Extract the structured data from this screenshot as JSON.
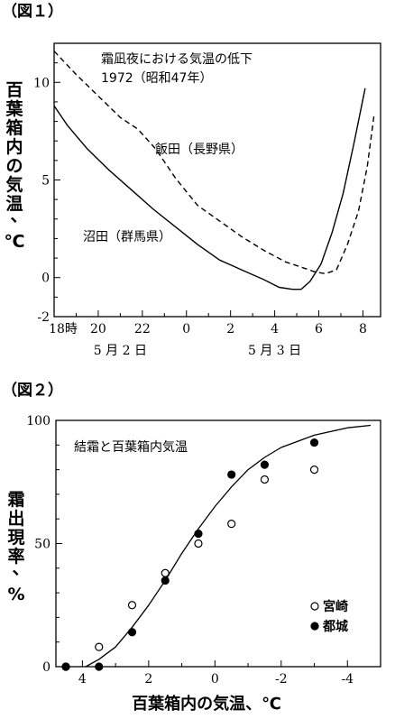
{
  "chart_data": [
    {
      "figure_label": "（図１）",
      "type": "line",
      "title": "霜凪夜における気温の低下",
      "subtitle": "1972（昭和47年）",
      "ylabel": "百葉箱内の気温、℃",
      "xlabel": "",
      "ylim": [
        -2,
        12
      ],
      "xlim": [
        18,
        32.8
      ],
      "x_ticks": [
        {
          "x": 18,
          "label": "18時"
        },
        {
          "x": 20,
          "label": "20"
        },
        {
          "x": 22,
          "label": "22"
        },
        {
          "x": 24,
          "label": "0"
        },
        {
          "x": 26,
          "label": "2"
        },
        {
          "x": 28,
          "label": "4"
        },
        {
          "x": 30,
          "label": "6"
        },
        {
          "x": 32,
          "label": "8"
        }
      ],
      "y_ticks": [
        {
          "y": -2,
          "label": "-2"
        },
        {
          "y": 0,
          "label": "0"
        },
        {
          "y": 5,
          "label": "5"
        },
        {
          "y": 10,
          "label": "10"
        }
      ],
      "date_labels": [
        {
          "x": 21,
          "label": "5 月 2 日"
        },
        {
          "x": 28,
          "label": "5 月 3 日"
        }
      ],
      "series": [
        {
          "name": "飯田（長野県）",
          "style": "dashed",
          "x": [
            18,
            19,
            20,
            21,
            21.8,
            22.6,
            23.5,
            24.5,
            25.5,
            26.5,
            27.5,
            28.5,
            29.3,
            29.8,
            30.3,
            30.8,
            31.3,
            31.8,
            32.2,
            32.5
          ],
          "y": [
            11.6,
            10.4,
            9.3,
            8.2,
            7.6,
            6.6,
            5.1,
            3.7,
            2.9,
            2.1,
            1.4,
            0.8,
            0.5,
            0.3,
            0.2,
            0.4,
            1.7,
            3.4,
            5.7,
            8.3
          ]
        },
        {
          "name": "沼田（群馬県）",
          "style": "solid",
          "x": [
            18,
            18.6,
            19.5,
            20.5,
            21.5,
            22.5,
            23.5,
            24.5,
            25.5,
            26.5,
            27.5,
            28.2,
            28.8,
            29.2,
            29.6,
            30.1,
            30.6,
            31.1,
            31.6,
            32.1
          ],
          "y": [
            8.8,
            7.8,
            6.6,
            5.5,
            4.5,
            3.5,
            2.6,
            1.7,
            0.9,
            0.4,
            -0.1,
            -0.5,
            -0.6,
            -0.6,
            -0.2,
            0.7,
            2.3,
            4.3,
            6.9,
            9.7
          ]
        }
      ]
    },
    {
      "figure_label": "（図２）",
      "type": "scatter",
      "title": "結霜と百葉箱内気温",
      "xlabel": "百葉箱内の気温、℃",
      "ylabel": "霜出現率、%",
      "xlim": [
        4.8,
        -5.0
      ],
      "ylim": [
        0,
        100
      ],
      "x_ticks": [
        {
          "x": 4,
          "label": "4"
        },
        {
          "x": 2,
          "label": "2"
        },
        {
          "x": 0,
          "label": "0"
        },
        {
          "x": -2,
          "label": "-2"
        },
        {
          "x": -4,
          "label": "-4"
        }
      ],
      "y_ticks": [
        {
          "y": 0,
          "label": "0"
        },
        {
          "y": 50,
          "label": "50"
        },
        {
          "y": 100,
          "label": "100"
        }
      ],
      "series": [
        {
          "name": "宮崎",
          "marker": "open-circle",
          "x": [
            4.5,
            3.5,
            2.5,
            1.5,
            0.5,
            -0.5,
            -1.5,
            -3.0
          ],
          "y": [
            0,
            8,
            25,
            38,
            50,
            58,
            76,
            80
          ]
        },
        {
          "name": "都城",
          "marker": "filled-circle",
          "x": [
            4.5,
            3.5,
            2.5,
            1.5,
            0.5,
            -0.5,
            -1.5,
            -3.0
          ],
          "y": [
            0,
            0,
            14,
            35,
            54,
            78,
            82,
            91
          ]
        },
        {
          "name": "",
          "style": "fit-line",
          "x": [
            3.9,
            3.5,
            3.0,
            2.5,
            2.0,
            1.5,
            1.0,
            0.5,
            0.0,
            -0.5,
            -1.0,
            -1.5,
            -2.0,
            -3.0,
            -4.0,
            -4.7
          ],
          "y": [
            0,
            3,
            8,
            16,
            25,
            35,
            46,
            56,
            65,
            73,
            80,
            85,
            89,
            94,
            97,
            98
          ]
        }
      ]
    }
  ]
}
